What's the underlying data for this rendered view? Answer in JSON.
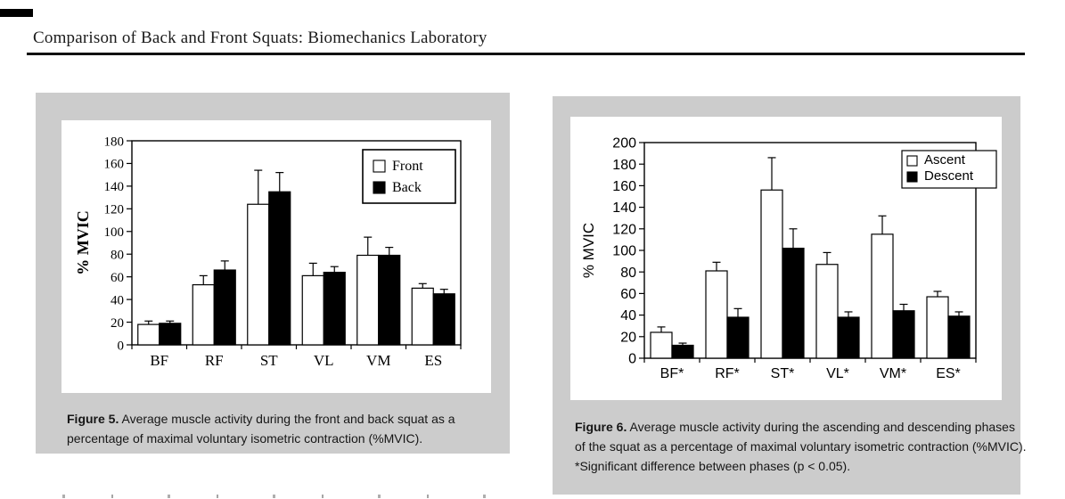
{
  "header": {
    "title": "Comparison of Back and Front Squats: Biomechanics Laboratory"
  },
  "figure5": {
    "label": "Figure 5.",
    "caption": "Average muscle activity during the front and back squat as a percentage of maximal voluntary isometric contraction (%MVIC)."
  },
  "figure6": {
    "label": "Figure 6.",
    "caption": "Average muscle activity during the ascending and descending phases of the squat as a percentage of maximal voluntary isometric contraction (%MVIC). *Significant difference between phases (p < 0.05)."
  },
  "colors": {
    "panel_background": "#cccccc",
    "bar_front_ascent": "#ffffff",
    "bar_back_descent": "#000000",
    "axis": "#000000"
  },
  "chart_data": [
    {
      "type": "bar",
      "figure": "Figure 5",
      "categories": [
        "BF",
        "RF",
        "ST",
        "VL",
        "VM",
        "ES"
      ],
      "series": [
        {
          "name": "Front",
          "fill": "#ffffff",
          "values": [
            18,
            53,
            124,
            61,
            79,
            50
          ],
          "errors": [
            3,
            8,
            30,
            11,
            16,
            4
          ]
        },
        {
          "name": "Back",
          "fill": "#000000",
          "values": [
            19,
            66,
            135,
            64,
            79,
            45
          ],
          "errors": [
            2,
            8,
            17,
            5,
            7,
            4
          ]
        }
      ],
      "xlabel": "",
      "ylabel": "% MVIC",
      "ylim": [
        0,
        180
      ],
      "ytick_step": 20,
      "grid": false,
      "legend_position": "top-right"
    },
    {
      "type": "bar",
      "figure": "Figure 6",
      "categories": [
        "BF*",
        "RF*",
        "ST*",
        "VL*",
        "VM*",
        "ES*"
      ],
      "series": [
        {
          "name": "Ascent",
          "fill": "#ffffff",
          "values": [
            24,
            81,
            156,
            87,
            115,
            57
          ],
          "errors": [
            5,
            8,
            30,
            11,
            17,
            5
          ]
        },
        {
          "name": "Descent",
          "fill": "#000000",
          "values": [
            12,
            38,
            102,
            38,
            44,
            39
          ],
          "errors": [
            2,
            8,
            18,
            5,
            6,
            4
          ]
        }
      ],
      "xlabel": "",
      "ylabel": "% MVIC",
      "ylim": [
        0,
        200
      ],
      "ytick_step": 20,
      "grid": false,
      "legend_position": "top-right"
    }
  ]
}
